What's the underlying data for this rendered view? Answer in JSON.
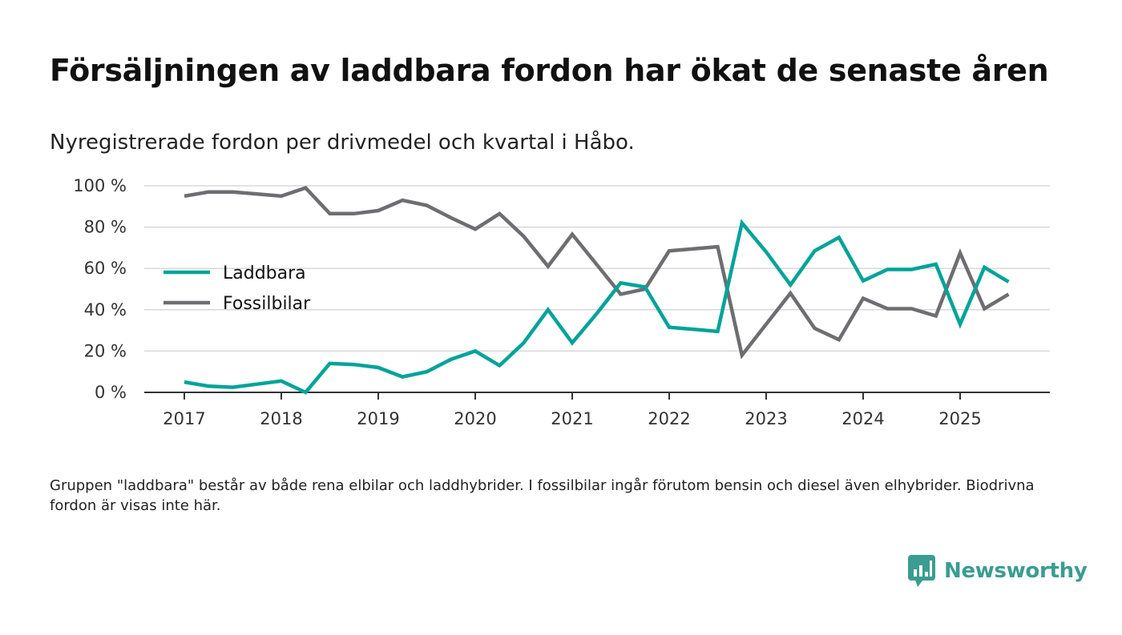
{
  "title": "Försäljningen av laddbara fordon har ökat de senaste åren",
  "subtitle": "Nyregistrerade fordon per drivmedel och kvartal i Håbo.",
  "footnote": "Gruppen \"laddbara\" består av både rena elbilar och laddhybrider. I fossilbilar ingår förutom bensin och diesel även elhybrider. Biodrivna fordon är visas inte här.",
  "logo": {
    "text": "Newsworthy",
    "icon": "newsworthy-logo-icon",
    "color": "#3b9c91"
  },
  "chart_data": {
    "type": "line",
    "title": "Försäljningen av laddbara fordon har ökat de senaste åren",
    "xlabel": "",
    "ylabel": "",
    "ylim": [
      0,
      100
    ],
    "yticks": [
      0,
      20,
      40,
      60,
      80,
      100
    ],
    "ytick_labels": [
      "0 %",
      "20 %",
      "40 %",
      "60 %",
      "80 %",
      "100 %"
    ],
    "xlim": [
      2017,
      2025.75
    ],
    "xticks": [
      2017,
      2018,
      2019,
      2020,
      2021,
      2022,
      2023,
      2024,
      2025
    ],
    "xtick_labels": [
      "2017",
      "2018",
      "2019",
      "2020",
      "2021",
      "2022",
      "2023",
      "2024",
      "2025"
    ],
    "grid": true,
    "legend_position": "left",
    "x": [
      2017,
      2017.25,
      2017.5,
      2017.75,
      2018,
      2018.25,
      2018.5,
      2018.75,
      2019,
      2019.25,
      2019.5,
      2019.75,
      2020,
      2020.25,
      2020.5,
      2020.75,
      2021,
      2021.25,
      2021.5,
      2021.75,
      2022,
      2022.25,
      2022.5,
      2022.75,
      2023,
      2023.25,
      2023.5,
      2023.75,
      2024,
      2024.25,
      2024.5,
      2024.75,
      2025,
      2025.25,
      2025.5
    ],
    "series": [
      {
        "name": "Laddbara",
        "color": "#00a39a",
        "values": [
          5,
          3,
          2.5,
          4,
          5.5,
          0,
          14,
          13.5,
          12,
          7.5,
          10,
          16,
          20,
          13,
          24,
          40,
          24,
          38,
          53,
          51,
          31.5,
          30.5,
          29.5,
          82,
          68,
          52,
          68.5,
          75,
          54,
          59.5,
          59.5,
          62,
          33,
          60.5,
          53.5
        ]
      },
      {
        "name": "Fossilbilar",
        "color": "#6e6d72",
        "values": [
          95,
          97,
          97,
          96,
          95,
          99,
          86.5,
          86.5,
          88,
          93,
          90.5,
          84.5,
          79,
          86.5,
          75.5,
          61,
          76.5,
          62,
          47.5,
          50,
          68.5,
          69.5,
          70.5,
          18,
          33,
          48,
          31,
          25.5,
          45.5,
          40.5,
          40.5,
          37,
          67.5,
          40.5,
          47.5
        ]
      }
    ]
  }
}
